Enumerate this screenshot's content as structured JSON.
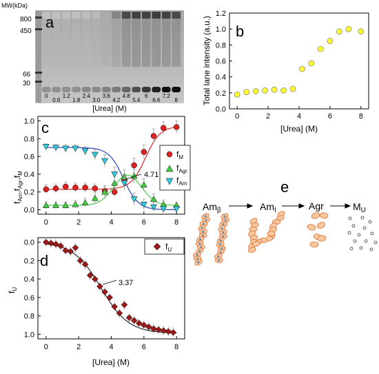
{
  "panel_labels": {
    "a": "a",
    "b": "b",
    "c": "c",
    "d": "d",
    "e": "e"
  },
  "panel_a": {
    "mw_label": "MW(kDa)",
    "mw_marks": [
      "800",
      "450",
      "66",
      "30"
    ],
    "lane_labels": [
      "0",
      "0.6",
      "1.2",
      "1.8",
      "2.4",
      "3.0",
      "3.6",
      "4.2",
      "4.8",
      "5.4",
      "6",
      "6.6",
      "7.2",
      "8"
    ],
    "xlabel": "[Urea] (M)",
    "band_intensity": [
      0.05,
      0.05,
      0.06,
      0.06,
      0.07,
      0.1,
      0.2,
      0.45,
      0.85,
      0.9,
      0.9,
      0.92,
      0.9,
      0.85
    ],
    "monomer_intensity": [
      0.15,
      0.15,
      0.15,
      0.15,
      0.2,
      0.2,
      0.25,
      0.3,
      0.4,
      0.55,
      0.7,
      0.85,
      0.95,
      0.95
    ]
  },
  "panel_e": {
    "labels": [
      "Amβ",
      "AmI",
      "Agr",
      "MU"
    ],
    "label_main": [
      "Am",
      "Am",
      "Agr",
      "M"
    ],
    "label_sub": [
      "β",
      "I",
      "",
      "U"
    ]
  },
  "chart_data": [
    {
      "panel": "b",
      "type": "scatter",
      "xlabel": "[Urea] (M)",
      "ylabel": "Total lane intensity (a.u.)",
      "xlim": [
        -0.5,
        8.5
      ],
      "ylim": [
        0,
        1.2
      ],
      "x_ticks": [
        "0",
        "2",
        "4",
        "6",
        "8"
      ],
      "y_ticks": [
        "0.0",
        "0.2",
        "0.4",
        "0.6",
        "0.8",
        "1.0",
        "1.2"
      ],
      "color": "#ffff33",
      "x": [
        0,
        0.6,
        1.2,
        1.8,
        2.4,
        3.0,
        3.6,
        4.2,
        4.8,
        5.4,
        6.0,
        6.6,
        7.2,
        8.0
      ],
      "y": [
        0.18,
        0.21,
        0.22,
        0.23,
        0.24,
        0.23,
        0.25,
        0.5,
        0.57,
        0.75,
        0.85,
        0.97,
        1.0,
        0.97
      ]
    },
    {
      "panel": "c",
      "type": "scatter",
      "xlabel": "",
      "ylabel": "fAm,fAgr,fM",
      "xlim": [
        -0.5,
        8.5
      ],
      "ylim": [
        -0.05,
        1.05
      ],
      "x_ticks": [
        "0",
        "2",
        "4",
        "6",
        "8"
      ],
      "y_ticks": [
        "0.0",
        "0.2",
        "0.4",
        "0.6",
        "0.8",
        "1.0"
      ],
      "annotation": "4.71",
      "x": [
        0,
        0.6,
        1.2,
        1.8,
        2.4,
        3.0,
        3.6,
        4.2,
        4.8,
        5.4,
        6.0,
        6.6,
        7.2,
        8.0
      ],
      "series": [
        {
          "name": "fM",
          "sub": "M",
          "color": "#dd2222",
          "marker": "circle",
          "values": [
            0.23,
            0.24,
            0.26,
            0.25,
            0.25,
            0.24,
            0.21,
            0.2,
            0.33,
            0.5,
            0.65,
            0.83,
            0.92,
            0.93
          ],
          "err": [
            0.05,
            0.05,
            0.05,
            0.05,
            0.05,
            0.05,
            0.05,
            0.05,
            0.07,
            0.08,
            0.08,
            0.08,
            0.07,
            0.07
          ]
        },
        {
          "name": "fAgr",
          "sub": "Agr",
          "color": "#44cc44",
          "marker": "triangle-up",
          "values": [
            0.05,
            0.05,
            0.05,
            0.06,
            0.08,
            0.13,
            0.2,
            0.3,
            0.37,
            0.38,
            0.28,
            0.12,
            0.06,
            0.05
          ],
          "err": [
            0.04,
            0.04,
            0.04,
            0.04,
            0.05,
            0.06,
            0.07,
            0.08,
            0.08,
            0.08,
            0.07,
            0.06,
            0.05,
            0.04
          ]
        },
        {
          "name": "fAm",
          "sub": "Am",
          "color": "#33ccdd",
          "marker": "triangle-down",
          "values": [
            0.71,
            0.7,
            0.69,
            0.69,
            0.66,
            0.62,
            0.55,
            0.4,
            0.3,
            0.12,
            0.06,
            0.03,
            0.01,
            0.01
          ],
          "err": [
            0.03,
            0.03,
            0.04,
            0.04,
            0.05,
            0.06,
            0.07,
            0.08,
            0.08,
            0.07,
            0.06,
            0.05,
            0.04,
            0.03
          ]
        }
      ]
    },
    {
      "panel": "d",
      "type": "scatter",
      "xlabel": "[Urea] (M)",
      "ylabel": "fU",
      "xlim": [
        -0.5,
        8.5
      ],
      "ylim": [
        -0.05,
        1.05
      ],
      "x_ticks": [
        "0",
        "2",
        "4",
        "6",
        "8"
      ],
      "y_ticks": [
        "0.0",
        "0.2",
        "0.4",
        "0.6",
        "0.8",
        "1.0"
      ],
      "y_inverted": true,
      "annotation": "3.37",
      "series": [
        {
          "name": "fU",
          "sub": "U",
          "color": "#9b1b1b",
          "marker": "diamond",
          "x": [
            0,
            0.3,
            0.6,
            0.9,
            1.2,
            1.5,
            1.8,
            2.1,
            2.4,
            2.7,
            3.0,
            3.3,
            3.6,
            3.9,
            4.2,
            4.5,
            4.8,
            5.1,
            5.4,
            5.7,
            6.0,
            6.3,
            6.6,
            6.9,
            7.2,
            7.5,
            7.8
          ],
          "values": [
            0.0,
            0.01,
            0.02,
            0.04,
            0.09,
            0.1,
            0.06,
            0.2,
            0.24,
            0.36,
            0.4,
            0.48,
            0.54,
            0.6,
            0.7,
            0.77,
            0.68,
            0.82,
            0.85,
            0.88,
            0.9,
            0.92,
            0.94,
            0.95,
            0.96,
            0.97,
            0.98
          ]
        }
      ]
    }
  ]
}
